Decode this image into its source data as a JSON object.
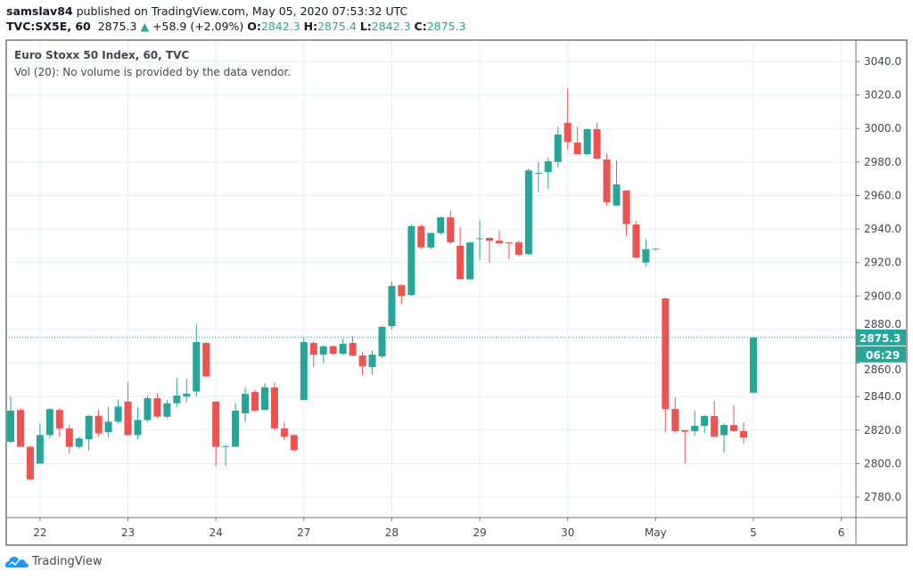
{
  "header": {
    "author": "samslav84",
    "published": "published on TradingView.com, May 05, 2020 07:53:32 UTC",
    "symbol": "TVC:SX5E, 60",
    "last": "2875.3",
    "change": "+58.9 (+2.09%)",
    "o_label": "O:",
    "o": "2842.3",
    "h_label": "H:",
    "h": "2875.4",
    "l_label": "L:",
    "l": "2842.3",
    "c_label": "C:",
    "c": "2875.3"
  },
  "legend": {
    "title": "Euro Stoxx 50 Index, 60, TVC",
    "volume": "Vol (20): No volume is provided by the data vendor."
  },
  "footer": {
    "brand": "TradingView"
  },
  "colors": {
    "up": "#26a69a",
    "down": "#ef5350",
    "grid": "#e6eef3"
  },
  "chart_data": {
    "type": "candlestick",
    "ylim": [
      2770,
      3050
    ],
    "y_ticks": [
      "2780.0",
      "2800.0",
      "2820.0",
      "2840.0",
      "2860.0",
      "2880.0",
      "2900.0",
      "2920.0",
      "2940.0",
      "2960.0",
      "2980.0",
      "3000.0",
      "3020.0",
      "3040.0"
    ],
    "x_ticks": [
      {
        "label": "22",
        "bar": 3
      },
      {
        "label": "23",
        "bar": 12
      },
      {
        "label": "24",
        "bar": 21
      },
      {
        "label": "27",
        "bar": 30
      },
      {
        "label": "28",
        "bar": 39
      },
      {
        "label": "29",
        "bar": 48
      },
      {
        "label": "30",
        "bar": 57
      },
      {
        "label": "May",
        "bar": 66
      },
      {
        "label": "5",
        "bar": 76
      },
      {
        "label": "6",
        "bar": 85
      }
    ],
    "grid": true,
    "last_price": "2875.3",
    "countdown": "06:29",
    "candles": [
      [
        2813,
        2840,
        2812,
        2831.6
      ],
      [
        2832,
        2833,
        2810,
        2810
      ],
      [
        2810,
        2811,
        2790,
        2790.5
      ],
      [
        2800,
        2824,
        2800,
        2817
      ],
      [
        2817,
        2833,
        2815,
        2832.5
      ],
      [
        2832,
        2833,
        2816,
        2821
      ],
      [
        2821,
        2823,
        2806,
        2810
      ],
      [
        2810,
        2816,
        2809,
        2815
      ],
      [
        2814.6,
        2829,
        2807.6,
        2828.5
      ],
      [
        2828.5,
        2832,
        2816,
        2818
      ],
      [
        2818.8,
        2834,
        2815.6,
        2825
      ],
      [
        2825,
        2838,
        2824,
        2834
      ],
      [
        2837,
        2848.6,
        2816.7,
        2817
      ],
      [
        2817,
        2833.7,
        2814.6,
        2826
      ],
      [
        2826,
        2840.5,
        2825,
        2839
      ],
      [
        2839,
        2842,
        2827,
        2828
      ],
      [
        2828,
        2838,
        2827,
        2836
      ],
      [
        2836,
        2851,
        2833.6,
        2840.6
      ],
      [
        2840,
        2850.6,
        2836.6,
        2841.7
      ],
      [
        2843,
        2883,
        2840,
        2872.5
      ],
      [
        2872,
        2872.5,
        2852,
        2852
      ],
      [
        2837,
        2837,
        2798.6,
        2810
      ],
      [
        2810,
        2811,
        2798.6,
        2810.5
      ],
      [
        2810,
        2836,
        2810,
        2831.6
      ],
      [
        2830,
        2845.5,
        2825,
        2841.6
      ],
      [
        2842.7,
        2844,
        2831,
        2831.6
      ],
      [
        2832,
        2848,
        2832,
        2845.5
      ],
      [
        2845.5,
        2848.6,
        2820,
        2821
      ],
      [
        2821,
        2824.6,
        2814,
        2816
      ],
      [
        2817,
        2817.5,
        2807.5,
        2808
      ],
      [
        2838,
        2875,
        2838,
        2872.5
      ],
      [
        2872,
        2873,
        2857.5,
        2865
      ],
      [
        2865,
        2870.5,
        2860,
        2870
      ],
      [
        2870,
        2870.5,
        2865,
        2865.6
      ],
      [
        2865.6,
        2874.5,
        2865,
        2871.5
      ],
      [
        2872,
        2876,
        2864,
        2864.5
      ],
      [
        2864.5,
        2866.7,
        2852.6,
        2858
      ],
      [
        2857.6,
        2867.7,
        2853,
        2865
      ],
      [
        2864,
        2882,
        2863,
        2881.6
      ],
      [
        2882,
        2908.7,
        2880,
        2906
      ],
      [
        2906.5,
        2907,
        2895,
        2900
      ],
      [
        2900.6,
        2942.7,
        2900,
        2941.7
      ],
      [
        2941.7,
        2942.7,
        2928,
        2929
      ],
      [
        2929,
        2938,
        2928,
        2937.6
      ],
      [
        2937.6,
        2947.5,
        2936.6,
        2947
      ],
      [
        2947,
        2951,
        2931,
        2932
      ],
      [
        2930,
        2941,
        2910,
        2910
      ],
      [
        2910,
        2932.5,
        2909.6,
        2932
      ],
      [
        2934,
        2945,
        2921.5,
        2934.5
      ],
      [
        2934.7,
        2935,
        2920,
        2933
      ],
      [
        2933,
        2939,
        2931,
        2931.5
      ],
      [
        2932,
        2932,
        2922,
        2931.5
      ],
      [
        2932,
        2933,
        2923.6,
        2924.6
      ],
      [
        2925,
        2976,
        2924.6,
        2975
      ],
      [
        2973,
        2980,
        2962,
        2973.5
      ],
      [
        2974,
        2982.6,
        2964,
        2980.4
      ],
      [
        2980,
        3001,
        2976.6,
        2996.4
      ],
      [
        3003.3,
        3024,
        2987.4,
        2992
      ],
      [
        2991.6,
        3001,
        2984.7,
        2984.7
      ],
      [
        2984.7,
        3000,
        2984,
        2999.6
      ],
      [
        2999.6,
        3003.3,
        2981.5,
        2982
      ],
      [
        2981.5,
        2985,
        2954,
        2956
      ],
      [
        2954,
        2981,
        2954,
        2966.6
      ],
      [
        2963,
        2963,
        2936,
        2943
      ],
      [
        2942.7,
        2945,
        2922.5,
        2923
      ],
      [
        2920,
        2934,
        2917.6,
        2928
      ],
      [
        2928,
        2928.5,
        2927.5,
        2928.2
      ],
      [
        2898.6,
        2899,
        2818.8,
        2832.6
      ],
      [
        2832.6,
        2839.5,
        2818.3,
        2819.3
      ],
      [
        2820,
        2820,
        2800,
        2819
      ],
      [
        2819.3,
        2831.5,
        2816.6,
        2822.5
      ],
      [
        2822.5,
        2829,
        2818,
        2828.4
      ],
      [
        2828.4,
        2837.5,
        2816,
        2816
      ],
      [
        2817,
        2824,
        2806.6,
        2823
      ],
      [
        2823,
        2834.8,
        2818.8,
        2819.4
      ],
      [
        2819.4,
        2824.6,
        2812,
        2815.6
      ],
      [
        2842.3,
        2875.4,
        2842.3,
        2875.3
      ]
    ]
  }
}
